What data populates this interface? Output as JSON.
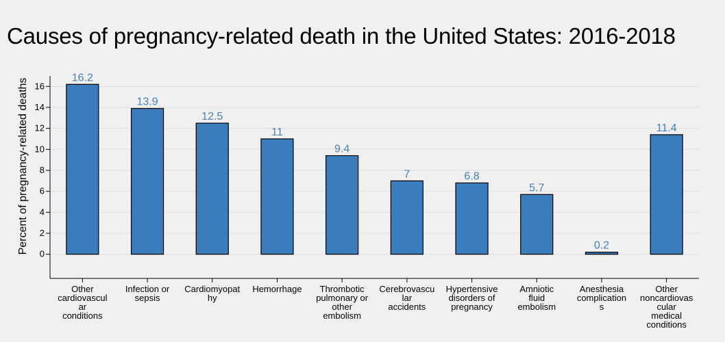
{
  "chart_data": {
    "type": "bar",
    "title": "Causes of pregnancy-related death in the United States: 2016-2018",
    "ylabel": "Percent of pregnancy-related deaths",
    "xlabel": "",
    "categories": [
      [
        "Other",
        "cardiovascul",
        "ar",
        "conditions"
      ],
      [
        "Infection or",
        "sepsis"
      ],
      [
        "Cardiomyopat",
        "hy"
      ],
      [
        "Hemorrhage"
      ],
      [
        "Thrombotic",
        "pulmonary or",
        "other",
        "embolism"
      ],
      [
        "Cerebrovascu",
        "lar",
        "accidents"
      ],
      [
        "Hypertensive",
        "disorders of",
        "pregnancy"
      ],
      [
        "Amniotic",
        "fluid",
        "embolism"
      ],
      [
        "Anesthesia",
        "complication",
        "s"
      ],
      [
        "Other",
        "noncardiovas",
        "cular",
        "medical",
        "conditions"
      ]
    ],
    "values": [
      16.2,
      13.9,
      12.5,
      11,
      9.4,
      7,
      6.8,
      5.7,
      0.2,
      11.4
    ],
    "value_labels": [
      "16.2",
      "13.9",
      "12.5",
      "11",
      "9.4",
      "7",
      "6.8",
      "5.7",
      "0.2",
      "11.4"
    ],
    "y_ticks": [
      0,
      2,
      4,
      6,
      8,
      10,
      12,
      14,
      16
    ],
    "ylim": [
      -2.3,
      17
    ],
    "grid": true,
    "legend": "none",
    "colors": {
      "bar": "#3a7dbd",
      "bar_stroke": "#000000",
      "label": "#4682b4",
      "grid": "#dedede"
    }
  }
}
